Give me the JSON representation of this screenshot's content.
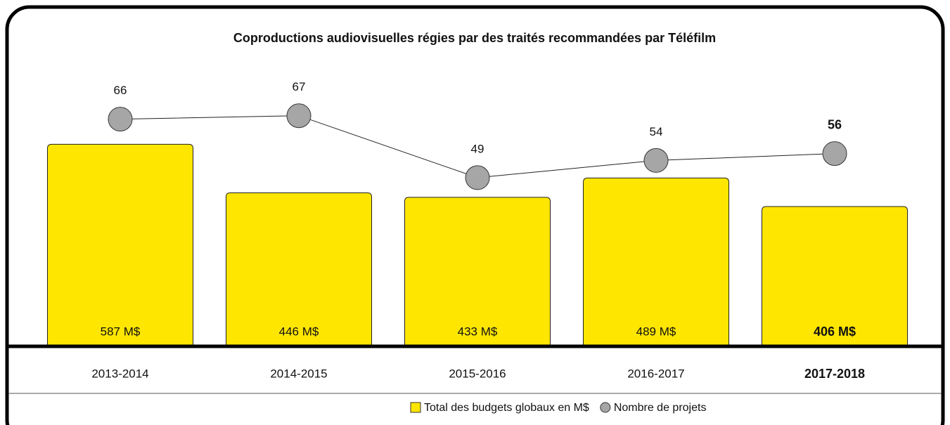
{
  "chart_data": {
    "type": "bar",
    "title": "Coproductions audiovisuelles régies par des traités recommandées par Téléfilm",
    "categories": [
      "2013-2014",
      "2014-2015",
      "2015-2016",
      "2016-2017",
      "2017-2018"
    ],
    "series": [
      {
        "name": "Total des budgets globaux en M$",
        "type": "bar",
        "color": "#ffe600",
        "values": [
          587,
          446,
          433,
          489,
          406
        ],
        "value_labels": [
          "587 M$",
          "446 M$",
          "433 M$",
          "489 M$",
          "406 M$"
        ]
      },
      {
        "name": "Nombre de projets",
        "type": "line",
        "axis": "y2",
        "color": "#a6a6a6",
        "values": [
          66,
          67,
          49,
          54,
          56
        ]
      }
    ],
    "ylim": [
      0,
      800
    ],
    "y2lim": [
      0,
      80
    ]
  }
}
